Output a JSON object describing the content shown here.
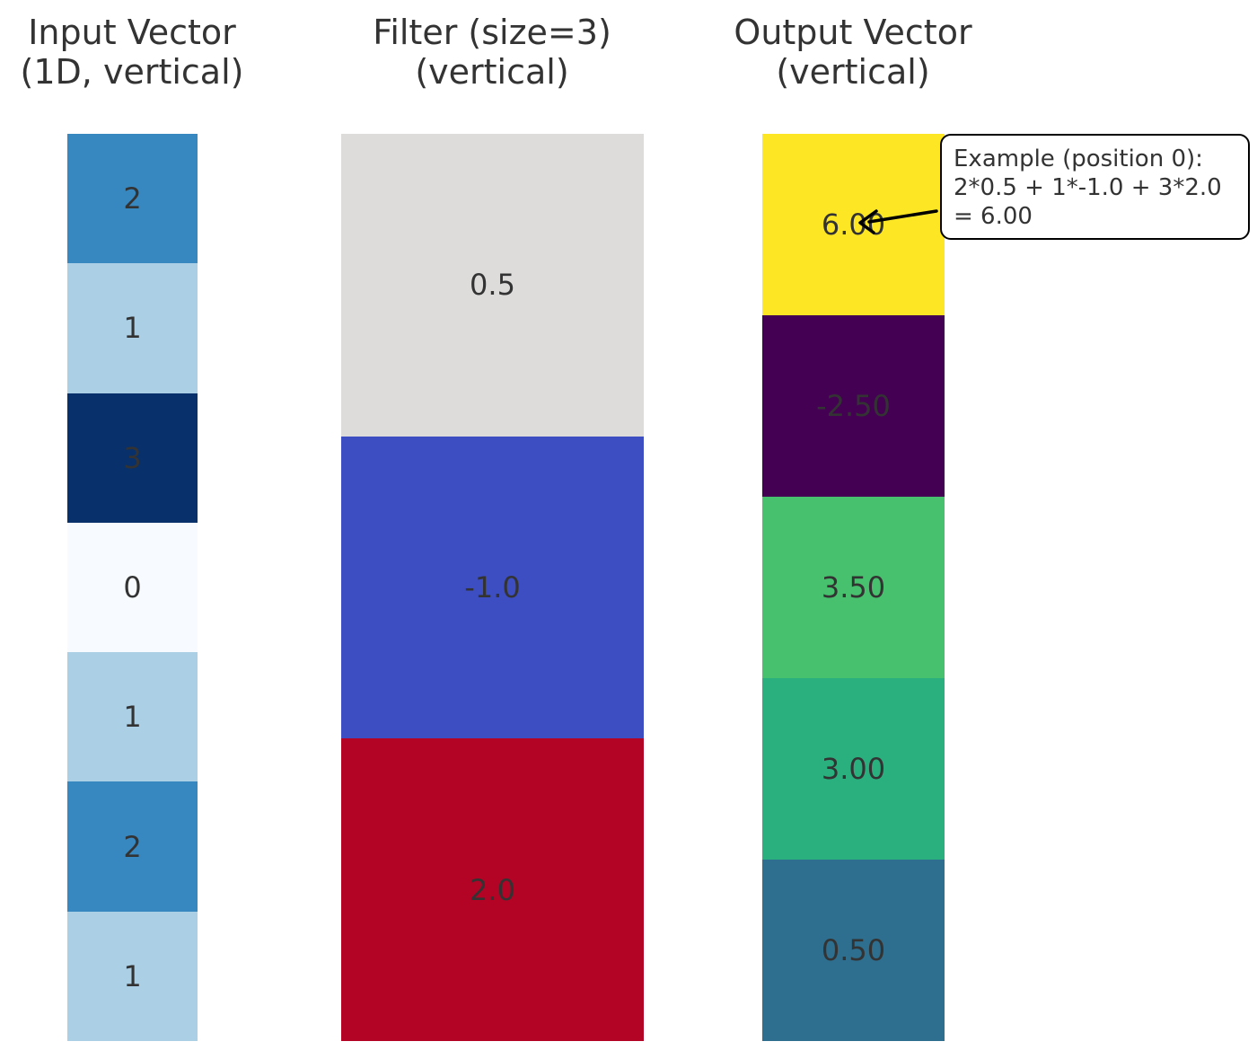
{
  "titles": {
    "input": [
      "Input Vector",
      "(1D, vertical)"
    ],
    "filter": [
      "Filter (size=3)",
      "(vertical)"
    ],
    "output": [
      "Output Vector",
      "(vertical)"
    ]
  },
  "input_vector": {
    "values": [
      "2",
      "1",
      "3",
      "0",
      "1",
      "2",
      "1"
    ],
    "colors": [
      "#3787c0",
      "#abd0e6",
      "#08306b",
      "#f7fbff",
      "#abd0e6",
      "#3787c0",
      "#abd0e6"
    ]
  },
  "filter": {
    "values": [
      "0.5",
      "-1.0",
      "2.0"
    ],
    "colors": [
      "#dddcdb",
      "#3c4ec2",
      "#b40426"
    ]
  },
  "output_vector": {
    "values": [
      "6.00",
      "-2.50",
      "3.50",
      "3.00",
      "0.50"
    ],
    "colors": [
      "#fde725",
      "#440154",
      "#47c16e",
      "#2ab07f",
      "#2e6e8e"
    ]
  },
  "annotation": {
    "lines": [
      "Example (position 0):",
      "2*0.5 + 1*-1.0 + 3*2.0",
      "= 6.00"
    ]
  }
}
